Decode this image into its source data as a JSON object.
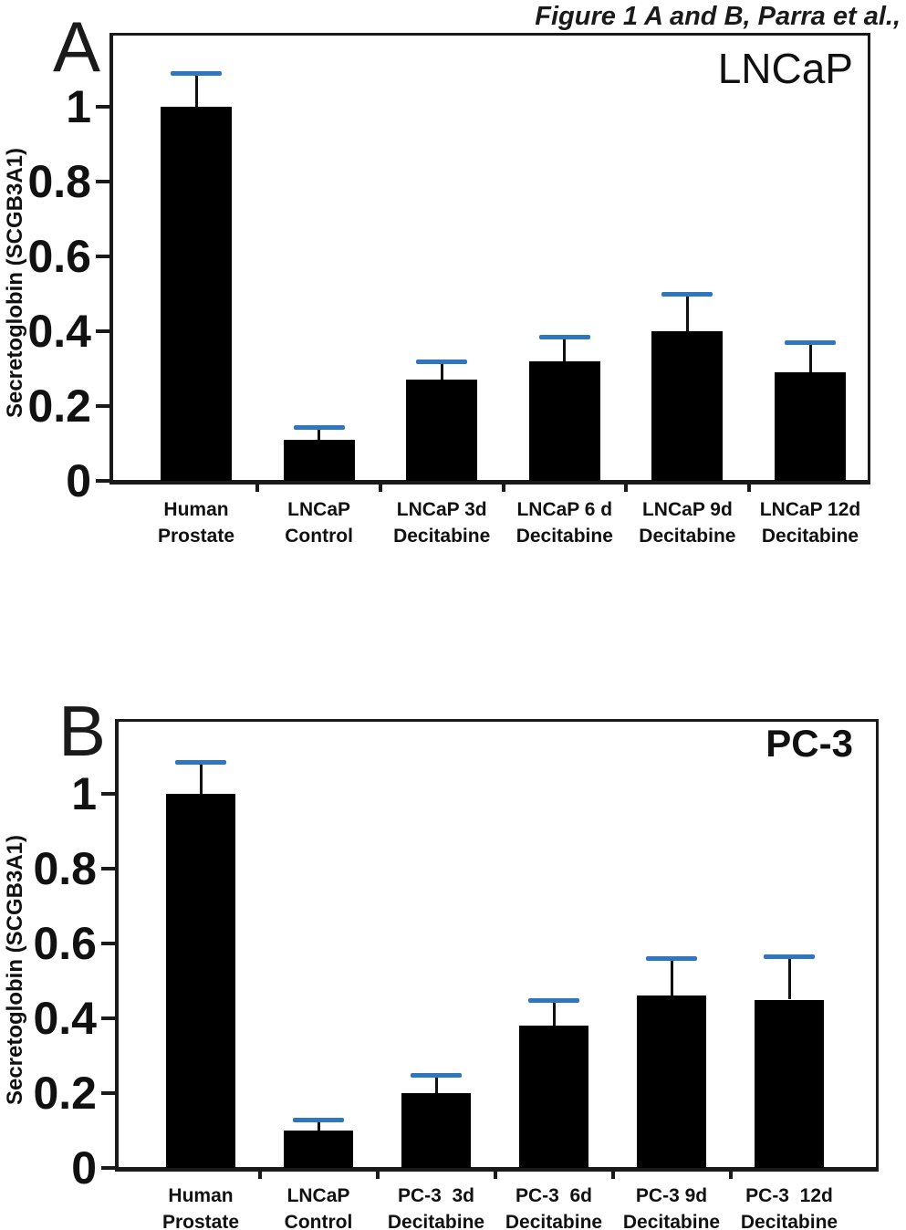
{
  "figure_title": "Figure 1 A and B, Parra et al.,",
  "y_axis_label": "Secretoglobin (SCGB3A1)",
  "colors": {
    "bar": "#000000",
    "error_cap": "#2E77BE",
    "axis": "#1A1A1A"
  },
  "chart_data": [
    {
      "type": "bar",
      "panel": "A",
      "corner_label": "LNCaP",
      "ylabel": "Secretoglobin (SCGB3A1)",
      "ylim": [
        0,
        1.2
      ],
      "grid": false,
      "yticks": [
        0,
        0.2,
        0.4,
        0.6,
        0.8,
        1
      ],
      "ytick_labels": [
        "0",
        "0.2",
        "0.4",
        "0.6",
        "0.8",
        "1"
      ],
      "categories": [
        "Human Prostate",
        "LNCaP Control",
        "LNCaP 3d Decitabine",
        "LNCaP 6 d Decitabine",
        "LNCaP 9d Decitabine",
        "LNCaP 12d Decitabine"
      ],
      "category_lines": [
        [
          "Human",
          "Prostate"
        ],
        [
          "LNCaP",
          "Control"
        ],
        [
          "LNCaP 3d",
          "Decitabine"
        ],
        [
          "LNCaP 6 d",
          "Decitabine"
        ],
        [
          "LNCaP 9d",
          "Decitabine"
        ],
        [
          "LNCaP 12d",
          "Decitabine"
        ]
      ],
      "values": [
        1.0,
        0.11,
        0.27,
        0.32,
        0.4,
        0.29
      ],
      "errors": [
        0.09,
        0.035,
        0.05,
        0.065,
        0.1,
        0.08
      ]
    },
    {
      "type": "bar",
      "panel": "B",
      "corner_label": "PC-3",
      "ylabel": "Secretoglobin (SCGB3A1)",
      "ylim": [
        0,
        1.2
      ],
      "grid": false,
      "yticks": [
        0,
        0.2,
        0.4,
        0.6,
        0.8,
        1
      ],
      "ytick_labels": [
        "0",
        "0.2",
        "0.4",
        "0.6",
        "0.8",
        "1"
      ],
      "categories": [
        "Human Prostate",
        "LNCaP Control",
        "PC-3 3d Decitabine",
        "PC-3 6d Decitabine",
        "PC-3 9d Decitabine",
        "PC-3 12d Decitabine"
      ],
      "category_lines": [
        [
          "Human",
          "Prostate"
        ],
        [
          "LNCaP",
          "Control"
        ],
        [
          "PC-3  3d",
          "Decitabine"
        ],
        [
          "PC-3  6d",
          "Decitabine"
        ],
        [
          "PC-3 9d",
          "Decitabine"
        ],
        [
          "PC-3  12d",
          "Decitabine"
        ]
      ],
      "values": [
        1.0,
        0.1,
        0.2,
        0.38,
        0.46,
        0.45
      ],
      "errors": [
        0.085,
        0.03,
        0.05,
        0.07,
        0.1,
        0.115
      ]
    }
  ]
}
